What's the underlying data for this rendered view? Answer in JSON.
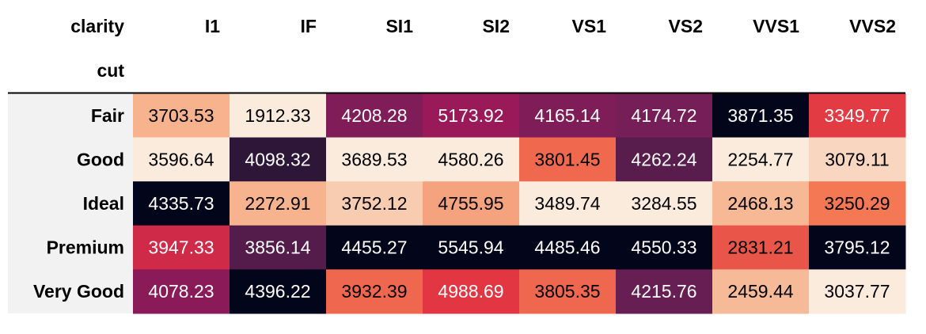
{
  "chart_data": {
    "type": "heatmap",
    "corner_labels": {
      "columns_name": "clarity",
      "index_name": "cut"
    },
    "columns": [
      "I1",
      "IF",
      "SI1",
      "SI2",
      "VS1",
      "VS2",
      "VVS1",
      "VVS2"
    ],
    "rows": [
      "Fair",
      "Good",
      "Ideal",
      "Premium",
      "Very Good"
    ],
    "values": [
      [
        "3703.53",
        "1912.33",
        "4208.28",
        "5173.92",
        "4165.14",
        "4174.72",
        "3871.35",
        "3349.77"
      ],
      [
        "3596.64",
        "4098.32",
        "3689.53",
        "4580.26",
        "3801.45",
        "4262.24",
        "2254.77",
        "3079.11"
      ],
      [
        "4335.73",
        "2272.91",
        "3752.12",
        "4755.95",
        "3489.74",
        "3284.55",
        "2468.13",
        "3250.29"
      ],
      [
        "3947.33",
        "3856.14",
        "4455.27",
        "5545.94",
        "4485.46",
        "4550.33",
        "2831.21",
        "3795.12"
      ],
      [
        "4078.23",
        "4396.22",
        "3932.39",
        "4988.69",
        "3805.35",
        "4215.76",
        "2459.44",
        "3037.77"
      ]
    ],
    "colormap": "per-column",
    "colormap_stops": [
      "#faebdd",
      "#f6b48f",
      "#f37651",
      "#e13342",
      "#ad1759",
      "#701f57",
      "#35193e",
      "#03051a"
    ],
    "header_background": "#f2f2f2",
    "separator_color": "#000000"
  }
}
